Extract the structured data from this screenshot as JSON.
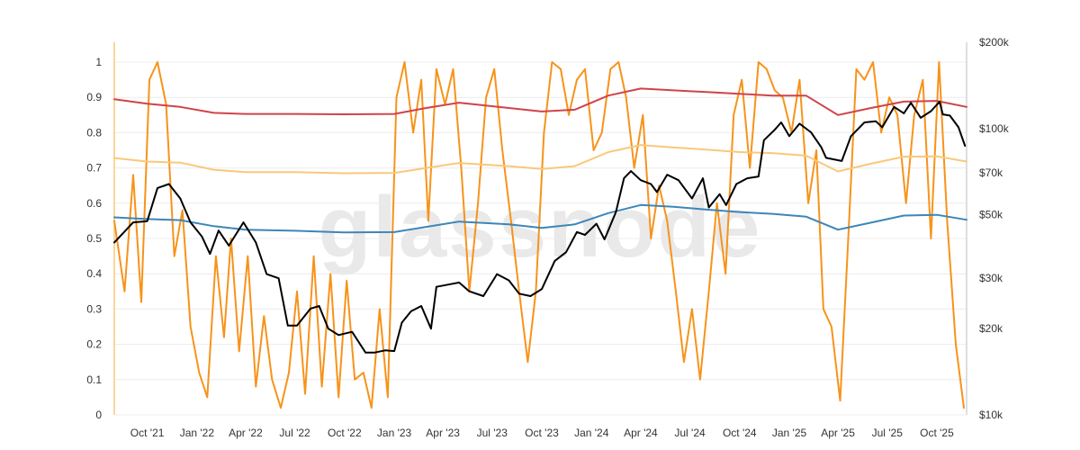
{
  "watermark": "glassnode",
  "colors": {
    "oscillator": "#f7931a",
    "price": "#000000",
    "upper_band": "#d0434a",
    "middle_band": "#f9c87a",
    "lower_band": "#3d86b8",
    "grid": "#ececec",
    "axis": "#bdbdbd",
    "left_axis_accent": "#f9c87a"
  },
  "chart_data": {
    "type": "line",
    "x_range": [
      "2021-08-01",
      "2025-11-25"
    ],
    "x_tick_labels": [
      {
        "date": "2021-10-01",
        "label": "Oct '21"
      },
      {
        "date": "2022-01-01",
        "label": "Jan '22"
      },
      {
        "date": "2022-04-01",
        "label": "Apr '22"
      },
      {
        "date": "2022-07-01",
        "label": "Jul '22"
      },
      {
        "date": "2022-10-01",
        "label": "Oct '22"
      },
      {
        "date": "2023-01-01",
        "label": "Jan '23"
      },
      {
        "date": "2023-04-01",
        "label": "Apr '23"
      },
      {
        "date": "2023-07-01",
        "label": "Jul '23"
      },
      {
        "date": "2023-10-01",
        "label": "Oct '23"
      },
      {
        "date": "2024-01-01",
        "label": "Jan '24"
      },
      {
        "date": "2024-04-01",
        "label": "Apr '24"
      },
      {
        "date": "2024-07-01",
        "label": "Jul '24"
      },
      {
        "date": "2024-10-01",
        "label": "Oct '24"
      },
      {
        "date": "2025-01-01",
        "label": "Jan '25"
      },
      {
        "date": "2025-04-01",
        "label": "Apr '25"
      },
      {
        "date": "2025-07-01",
        "label": "Jul '25"
      },
      {
        "date": "2025-10-01",
        "label": "Oct '25"
      }
    ],
    "y_left": {
      "min": 0,
      "max": 1,
      "ticks": [
        "0",
        "0.1",
        "0.2",
        "0.3",
        "0.4",
        "0.5",
        "0.6",
        "0.7",
        "0.8",
        "0.9",
        "1"
      ]
    },
    "y_right": {
      "scale": "log",
      "min": 10000,
      "max": 200000,
      "ticks": [
        {
          "value": 10000,
          "label": "$10k"
        },
        {
          "value": 20000,
          "label": "$20k"
        },
        {
          "value": 30000,
          "label": "$30k"
        },
        {
          "value": 50000,
          "label": "$50k"
        },
        {
          "value": 70000,
          "label": "$70k"
        },
        {
          "value": 100000,
          "label": "$100k"
        },
        {
          "value": 200000,
          "label": "$200k"
        }
      ]
    },
    "grid": true,
    "series": [
      {
        "key": "oscillator",
        "axis": "left",
        "x": [
          "2021-08-01",
          "2021-08-20",
          "2021-09-05",
          "2021-09-20",
          "2021-10-05",
          "2021-10-20",
          "2021-11-05",
          "2021-11-20",
          "2021-12-05",
          "2021-12-20",
          "2022-01-05",
          "2022-01-20",
          "2022-02-05",
          "2022-02-20",
          "2022-03-05",
          "2022-03-20",
          "2022-04-05",
          "2022-04-20",
          "2022-05-05",
          "2022-05-20",
          "2022-06-05",
          "2022-06-20",
          "2022-07-05",
          "2022-07-20",
          "2022-08-05",
          "2022-08-20",
          "2022-09-05",
          "2022-09-20",
          "2022-10-05",
          "2022-10-20",
          "2022-11-05",
          "2022-11-20",
          "2022-12-05",
          "2022-12-20",
          "2023-01-05",
          "2023-01-20",
          "2023-02-05",
          "2023-02-20",
          "2023-03-05",
          "2023-03-20",
          "2023-04-05",
          "2023-04-20",
          "2023-05-05",
          "2023-05-20",
          "2023-06-05",
          "2023-06-20",
          "2023-07-05",
          "2023-07-20",
          "2023-08-05",
          "2023-08-20",
          "2023-09-05",
          "2023-09-20",
          "2023-10-05",
          "2023-10-20",
          "2023-11-05",
          "2023-11-20",
          "2023-12-05",
          "2023-12-20",
          "2024-01-05",
          "2024-01-20",
          "2024-02-05",
          "2024-02-20",
          "2024-03-05",
          "2024-03-20",
          "2024-04-05",
          "2024-04-20",
          "2024-05-05",
          "2024-05-20",
          "2024-06-05",
          "2024-06-20",
          "2024-07-05",
          "2024-07-20",
          "2024-08-05",
          "2024-08-20",
          "2024-09-05",
          "2024-09-20",
          "2024-10-05",
          "2024-10-20",
          "2024-11-05",
          "2024-11-20",
          "2024-12-05",
          "2024-12-20",
          "2025-01-05",
          "2025-01-20",
          "2025-02-05",
          "2025-02-20",
          "2025-03-05",
          "2025-03-20",
          "2025-04-05",
          "2025-04-20",
          "2025-05-05",
          "2025-05-20",
          "2025-06-05",
          "2025-06-20",
          "2025-07-05",
          "2025-07-20",
          "2025-08-05",
          "2025-08-20",
          "2025-09-05",
          "2025-09-20",
          "2025-10-05",
          "2025-10-20",
          "2025-11-05",
          "2025-11-20"
        ],
        "y": [
          0.55,
          0.35,
          0.68,
          0.32,
          0.95,
          1.0,
          0.88,
          0.45,
          0.58,
          0.25,
          0.12,
          0.05,
          0.45,
          0.22,
          0.5,
          0.18,
          0.45,
          0.08,
          0.28,
          0.1,
          0.02,
          0.12,
          0.35,
          0.06,
          0.45,
          0.08,
          0.4,
          0.05,
          0.38,
          0.1,
          0.12,
          0.02,
          0.3,
          0.05,
          0.9,
          1.0,
          0.8,
          0.95,
          0.55,
          0.98,
          0.88,
          0.98,
          0.7,
          0.35,
          0.6,
          0.9,
          0.98,
          0.75,
          0.55,
          0.35,
          0.15,
          0.35,
          0.8,
          1.0,
          0.98,
          0.85,
          0.95,
          0.98,
          0.75,
          0.8,
          0.98,
          1.0,
          0.9,
          0.7,
          0.85,
          0.5,
          0.65,
          0.55,
          0.35,
          0.15,
          0.3,
          0.1,
          0.35,
          0.6,
          0.4,
          0.85,
          0.95,
          0.7,
          1.0,
          0.98,
          0.92,
          0.9,
          0.8,
          0.95,
          0.6,
          0.75,
          0.3,
          0.25,
          0.04,
          0.5,
          0.98,
          0.95,
          1.0,
          0.8,
          0.9,
          0.85,
          0.6,
          0.85,
          0.95,
          0.5,
          1.0,
          0.55,
          0.2,
          0.02
        ]
      },
      {
        "key": "price",
        "axis": "right",
        "x": [
          "2021-08-01",
          "2021-09-05",
          "2021-10-01",
          "2021-10-20",
          "2021-11-10",
          "2021-12-01",
          "2021-12-20",
          "2022-01-10",
          "2022-01-25",
          "2022-02-10",
          "2022-03-01",
          "2022-03-28",
          "2022-04-20",
          "2022-05-10",
          "2022-06-01",
          "2022-06-18",
          "2022-07-05",
          "2022-07-30",
          "2022-08-15",
          "2022-09-01",
          "2022-09-20",
          "2022-10-15",
          "2022-11-09",
          "2022-11-25",
          "2022-12-15",
          "2023-01-01",
          "2023-01-15",
          "2023-02-01",
          "2023-02-20",
          "2023-03-10",
          "2023-03-20",
          "2023-04-10",
          "2023-05-01",
          "2023-05-20",
          "2023-06-15",
          "2023-07-10",
          "2023-08-01",
          "2023-08-20",
          "2023-09-10",
          "2023-10-01",
          "2023-10-25",
          "2023-11-15",
          "2023-12-05",
          "2023-12-20",
          "2024-01-10",
          "2024-01-25",
          "2024-02-15",
          "2024-03-01",
          "2024-03-14",
          "2024-04-01",
          "2024-04-20",
          "2024-05-01",
          "2024-05-20",
          "2024-06-10",
          "2024-07-05",
          "2024-07-25",
          "2024-08-05",
          "2024-08-25",
          "2024-09-06",
          "2024-09-25",
          "2024-10-15",
          "2024-11-05",
          "2024-11-15",
          "2024-12-05",
          "2024-12-17",
          "2025-01-01",
          "2025-01-20",
          "2025-02-10",
          "2025-03-01",
          "2025-03-10",
          "2025-04-08",
          "2025-04-25",
          "2025-05-20",
          "2025-06-10",
          "2025-06-22",
          "2025-07-14",
          "2025-08-01",
          "2025-08-14",
          "2025-09-01",
          "2025-09-20",
          "2025-10-06",
          "2025-10-12",
          "2025-10-25",
          "2025-11-10",
          "2025-11-22"
        ],
        "y": [
          40000,
          47000,
          47500,
          62000,
          64000,
          57000,
          47000,
          42000,
          36500,
          44000,
          39000,
          47000,
          40000,
          31000,
          30000,
          20500,
          20500,
          23500,
          24000,
          20000,
          19000,
          19500,
          16500,
          16500,
          16800,
          16700,
          21000,
          23000,
          24000,
          20000,
          28000,
          28500,
          29000,
          27000,
          26000,
          31000,
          29500,
          26500,
          26000,
          27500,
          34500,
          37000,
          43500,
          42500,
          46500,
          41000,
          51000,
          67000,
          71000,
          66000,
          64000,
          60000,
          69000,
          66000,
          57000,
          67000,
          53000,
          59000,
          54000,
          64000,
          67000,
          68000,
          91000,
          99000,
          105000,
          94000,
          104000,
          97000,
          86000,
          79000,
          77000,
          94000,
          105000,
          106000,
          101000,
          119000,
          113000,
          123000,
          109000,
          115000,
          124000,
          112000,
          111000,
          101000,
          87000
        ]
      },
      {
        "key": "upper_band",
        "axis": "left",
        "x": [
          "2021-08-01",
          "2021-10-01",
          "2021-12-01",
          "2022-02-01",
          "2022-04-01",
          "2022-07-01",
          "2022-10-01",
          "2023-01-01",
          "2023-03-01",
          "2023-05-01",
          "2023-08-01",
          "2023-10-01",
          "2023-12-01",
          "2024-02-01",
          "2024-04-01",
          "2024-06-01",
          "2024-08-01",
          "2024-10-01",
          "2024-12-01",
          "2025-02-01",
          "2025-04-01",
          "2025-06-01",
          "2025-08-01",
          "2025-10-01",
          "2025-11-25"
        ],
        "y": [
          0.895,
          0.882,
          0.873,
          0.856,
          0.853,
          0.853,
          0.852,
          0.853,
          0.87,
          0.885,
          0.87,
          0.86,
          0.865,
          0.905,
          0.925,
          0.92,
          0.915,
          0.91,
          0.905,
          0.905,
          0.85,
          0.87,
          0.888,
          0.89,
          0.873
        ]
      },
      {
        "key": "middle_band",
        "axis": "left",
        "x": [
          "2021-08-01",
          "2021-10-01",
          "2021-12-01",
          "2022-02-01",
          "2022-04-01",
          "2022-07-01",
          "2022-10-01",
          "2023-01-01",
          "2023-03-01",
          "2023-05-01",
          "2023-08-01",
          "2023-10-01",
          "2023-12-01",
          "2024-02-01",
          "2024-04-01",
          "2024-06-01",
          "2024-08-01",
          "2024-10-01",
          "2024-12-01",
          "2025-02-01",
          "2025-04-01",
          "2025-06-01",
          "2025-08-01",
          "2025-10-01",
          "2025-11-25"
        ],
        "y": [
          0.728,
          0.718,
          0.715,
          0.695,
          0.688,
          0.688,
          0.685,
          0.686,
          0.7,
          0.714,
          0.705,
          0.697,
          0.705,
          0.745,
          0.765,
          0.758,
          0.752,
          0.745,
          0.742,
          0.735,
          0.69,
          0.712,
          0.732,
          0.733,
          0.718
        ]
      },
      {
        "key": "lower_band",
        "axis": "left",
        "x": [
          "2021-08-01",
          "2021-10-01",
          "2021-12-01",
          "2022-02-01",
          "2022-04-01",
          "2022-07-01",
          "2022-10-01",
          "2023-01-01",
          "2023-03-01",
          "2023-05-01",
          "2023-08-01",
          "2023-10-01",
          "2023-12-01",
          "2024-02-01",
          "2024-04-01",
          "2024-06-01",
          "2024-08-01",
          "2024-10-01",
          "2024-12-01",
          "2025-02-01",
          "2025-04-01",
          "2025-06-01",
          "2025-08-01",
          "2025-10-01",
          "2025-11-25"
        ],
        "y": [
          0.56,
          0.555,
          0.552,
          0.535,
          0.525,
          0.522,
          0.517,
          0.518,
          0.533,
          0.548,
          0.54,
          0.53,
          0.54,
          0.572,
          0.595,
          0.59,
          0.582,
          0.575,
          0.57,
          0.562,
          0.525,
          0.545,
          0.565,
          0.567,
          0.553
        ]
      }
    ]
  }
}
